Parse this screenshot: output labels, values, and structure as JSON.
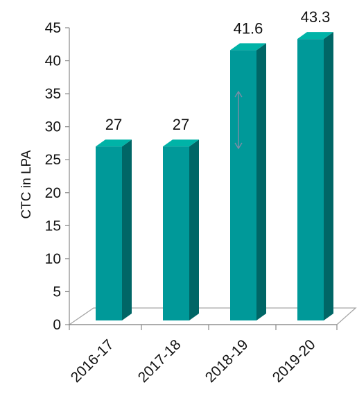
{
  "chart_data": {
    "type": "bar",
    "style": "3d-column",
    "categories": [
      "2016-17",
      "2017-18",
      "2018-19",
      "2019-20"
    ],
    "values": [
      27,
      27,
      41.6,
      43.3
    ],
    "data_labels": [
      "27",
      "27",
      "41.6",
      "43.3"
    ],
    "title": "",
    "xlabel": "",
    "ylabel": "CTC in LPA",
    "ylim": [
      0,
      45
    ],
    "yticks": [
      0,
      5,
      10,
      15,
      20,
      25,
      30,
      35,
      40,
      45
    ],
    "ytick_labels": [
      "0",
      "5",
      "10",
      "15",
      "20",
      "25",
      "30",
      "35",
      "40",
      "45"
    ],
    "grid": false,
    "legend": "none",
    "colors": {
      "bar_front": "#009999",
      "bar_side": "#006666",
      "bar_top": "#00b3a7",
      "floor_stroke": "#a6a6a6",
      "annotation_arrow": "#7f8ca6"
    }
  }
}
